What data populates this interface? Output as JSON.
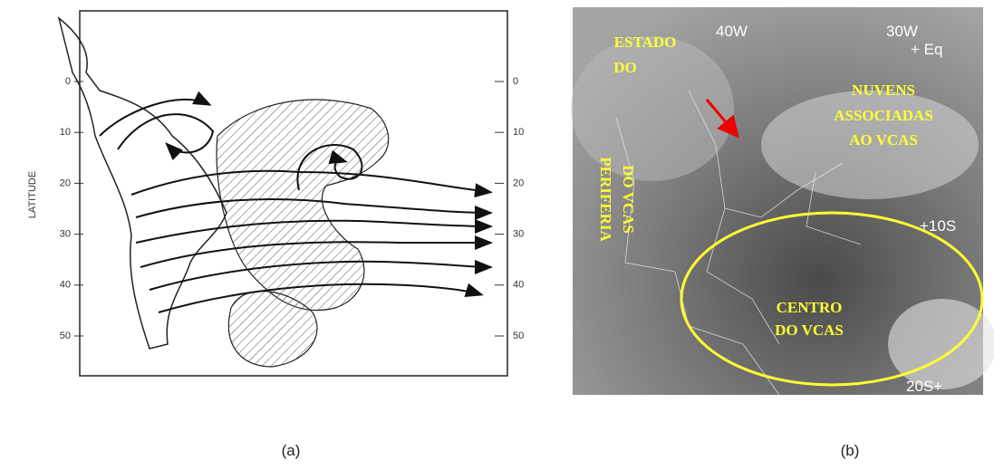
{
  "panel_a": {
    "axis_label": "LATITUDE",
    "left_ticks": [
      0,
      10,
      20,
      30,
      40,
      50
    ],
    "right_ticks": [
      0,
      10,
      20,
      30,
      40,
      50
    ],
    "caption": "(a)"
  },
  "panel_b": {
    "estado": [
      "ESTADO",
      "DO"
    ],
    "lon_40": "40W",
    "lon_30": "30W",
    "eq": "+ Eq",
    "nuvens": [
      "NUVENS",
      "ASSOCIADAS",
      "AO VCAS"
    ],
    "periferia": [
      "PERIFERIA",
      "DO VCAS"
    ],
    "lat_10": "+10S",
    "centro": [
      "CENTRO",
      "DO VCAS"
    ],
    "lat_20": "20S+",
    "caption": "(b)"
  }
}
